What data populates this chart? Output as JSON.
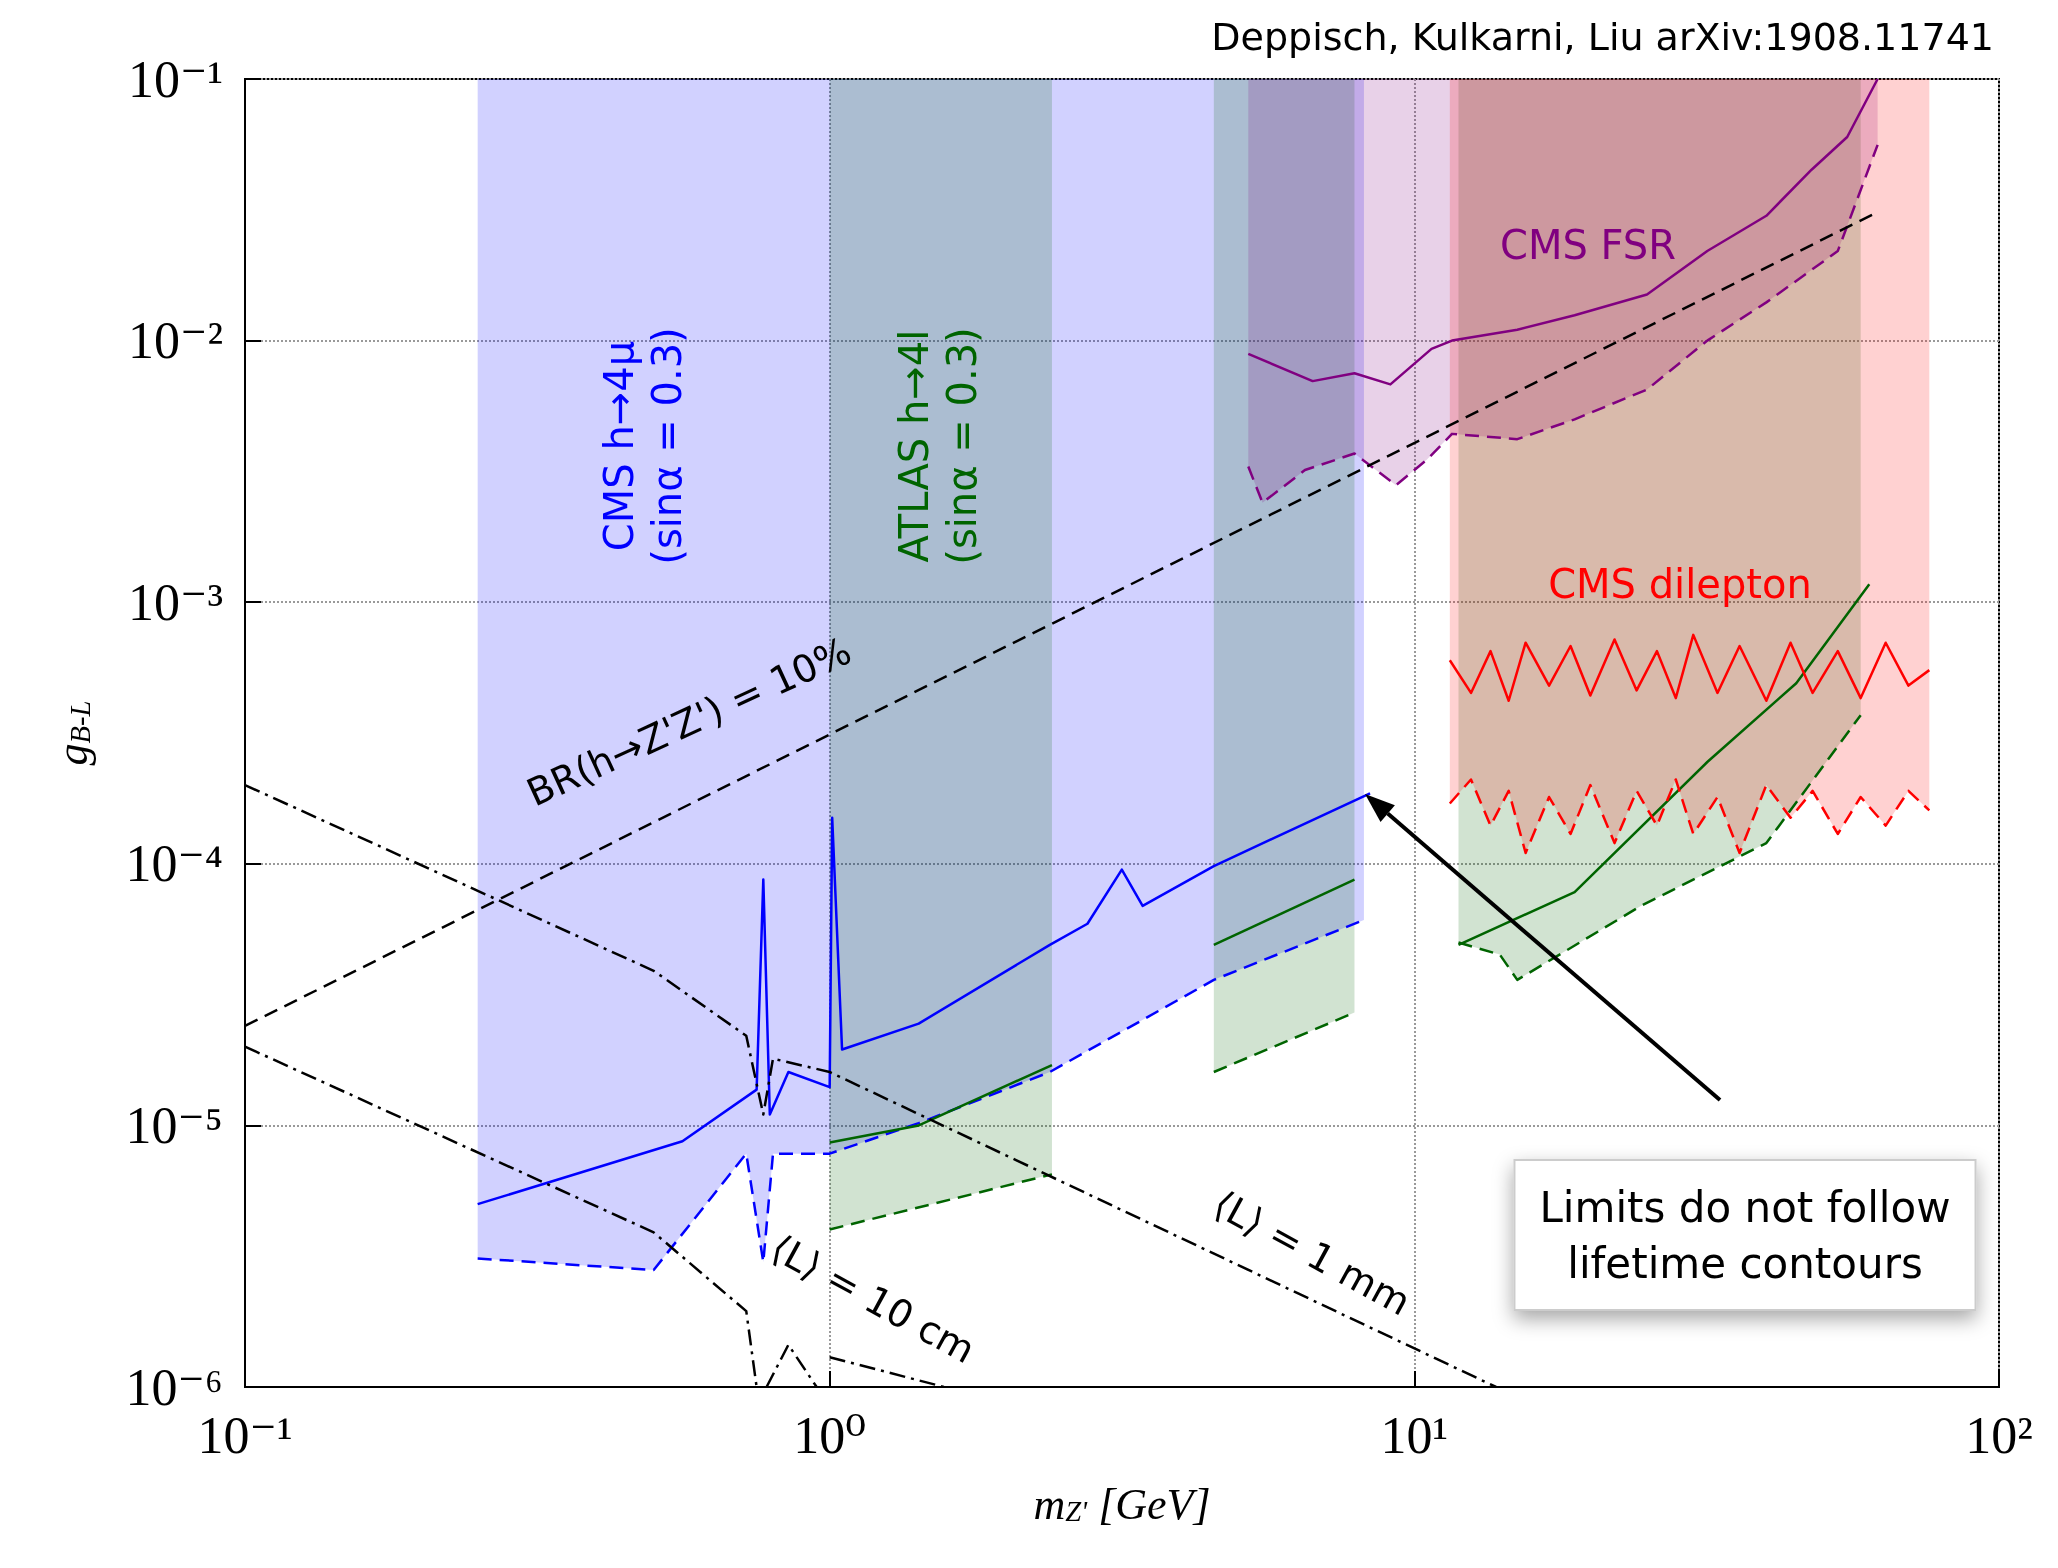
{
  "chart_data": {
    "type": "line",
    "title": "Deppisch, Kulkarni, Liu arXiv:1908.11741",
    "xlabel": "m$_{Z'}$ [GeV]",
    "ylabel": "g$_{B-L}$",
    "log": "xy",
    "grid": true,
    "marker": "none",
    "xlim": [
      0.1,
      100
    ],
    "ylim": [
      1e-06,
      0.1
    ],
    "xticks": [
      {
        "value": 0.1,
        "label": "10⁻¹"
      },
      {
        "value": 1,
        "label": "10⁰"
      },
      {
        "value": 10,
        "label": "10¹"
      },
      {
        "value": 100,
        "label": "10²"
      }
    ],
    "yticks": [
      {
        "value": 1e-06,
        "label": "10⁻⁶"
      },
      {
        "value": 1e-05,
        "label": "10⁻⁵"
      },
      {
        "value": 0.0001,
        "label": "10⁻⁴"
      },
      {
        "value": 0.001,
        "label": "10⁻³"
      },
      {
        "value": 0.01,
        "label": "10⁻²"
      },
      {
        "value": 0.1,
        "label": "10⁻¹"
      }
    ],
    "series": [
      {
        "color": "#0000ff",
        "line_style": "dashed",
        "x": [
          0.25,
          0.5,
          0.72,
          0.77,
          0.8,
          1.0,
          1.42,
          2.38,
          4.54,
          8.2
        ],
        "values": [
          3.1e-06,
          2.8e-06,
          7.8e-06,
          3e-06,
          7.8e-06,
          7.8e-06,
          1.02e-05,
          1.6e-05,
          3.6e-05,
          6.1e-05
        ],
        "lower": [
          3.1e-06,
          2.8e-06,
          7.8e-06,
          3e-06,
          7.8e-06,
          7.8e-06,
          1.02e-05,
          1.6e-05,
          3.6e-05,
          6.1e-05
        ],
        "upper": [
          0.1,
          0.1,
          0.1,
          0.1,
          0.1,
          0.1,
          0.1,
          0.1,
          0.1,
          0.1
        ]
      },
      {
        "color": "#0000ff",
        "line_style": "solid",
        "x": [
          0.25,
          0.56,
          0.75,
          0.77,
          0.79,
          0.85,
          1.0,
          1.01,
          1.05,
          1.42,
          2.38,
          2.76,
          3.16,
          3.43,
          4.54,
          8.4
        ],
        "values": [
          5e-06,
          8.7e-06,
          1.37e-05,
          8.7e-05,
          1.1e-05,
          1.6e-05,
          1.4e-05,
          0.00015,
          1.95e-05,
          2.45e-05,
          4.9e-05,
          5.9e-05,
          9.5e-05,
          6.9e-05,
          9.8e-05,
          0.000186
        ]
      },
      {
        "color": "#006400",
        "line_style": "dashed",
        "x": [
          1.0,
          2.4
        ],
        "values": [
          4e-06,
          6.5e-06
        ],
        "lower": [
          4e-06,
          6.5e-06
        ],
        "upper": [
          0.1,
          0.1
        ]
      },
      {
        "color": "#006400",
        "line_style": "dashed",
        "x": [
          4.54,
          7.9
        ],
        "values": [
          1.6e-05,
          2.7e-05
        ],
        "lower": [
          1.6e-05,
          2.7e-05
        ],
        "upper": [
          0.1,
          0.1
        ]
      },
      {
        "color": "#006400",
        "line_style": "dashed",
        "x": [
          11.9,
          14,
          15,
          24.4,
          40,
          58
        ],
        "values": [
          5e-05,
          4.5e-05,
          3.6e-05,
          6.9e-05,
          0.00012,
          0.00037
        ],
        "lower": [
          5e-05,
          4.5e-05,
          3.6e-05,
          6.9e-05,
          0.00012,
          0.00037
        ],
        "upper": [
          0.1,
          0.1,
          0.1,
          0.1,
          0.1,
          0.1
        ]
      },
      {
        "color": "#006400",
        "line_style": "solid",
        "x": [
          1.0,
          1.42,
          2.4
        ],
        "values": [
          8.6e-06,
          1e-05,
          1.7e-05
        ]
      },
      {
        "color": "#006400",
        "line_style": "solid",
        "x": [
          4.54,
          7.9
        ],
        "values": [
          4.9e-05,
          8.7e-05
        ]
      },
      {
        "color": "#006400",
        "line_style": "solid",
        "x": [
          11.9,
          18.8,
          31.7,
          45,
          60
        ],
        "values": [
          4.9e-05,
          7.8e-05,
          0.000245,
          0.00049,
          0.00117
        ]
      },
      {
        "color": "#800080",
        "line_style": "dashed",
        "x": [
          5.2,
          5.5,
          6.5,
          7.9,
          9.3,
          10.5,
          11.6,
          15,
          18.8,
          25,
          31.7,
          40,
          53,
          62
        ],
        "values": [
          0.0033,
          0.0024,
          0.0032,
          0.0037,
          0.0028,
          0.0035,
          0.0044,
          0.0042,
          0.005,
          0.0065,
          0.01,
          0.014,
          0.022,
          0.056
        ],
        "lower": [
          0.0033,
          0.0024,
          0.0032,
          0.0037,
          0.0028,
          0.0035,
          0.0044,
          0.0042,
          0.005,
          0.0065,
          0.01,
          0.014,
          0.022,
          0.056
        ],
        "upper": [
          0.1,
          0.1,
          0.1,
          0.1,
          0.1,
          0.1,
          0.1,
          0.1,
          0.1,
          0.1,
          0.1,
          0.1,
          0.1,
          0.1
        ]
      },
      {
        "color": "#800080",
        "line_style": "solid",
        "x": [
          5.2,
          6.7,
          7.9,
          9.1,
          10.7,
          11.6,
          15,
          18.8,
          25,
          31.7,
          40,
          47.8,
          55,
          62
        ],
        "values": [
          0.0089,
          0.007,
          0.0075,
          0.0068,
          0.0093,
          0.01,
          0.011,
          0.0125,
          0.015,
          0.022,
          0.03,
          0.045,
          0.06,
          0.1
        ]
      },
      {
        "color": "#ff0000",
        "line_style": "dashed",
        "x": [
          11.5,
          12.5,
          13.5,
          14.5,
          15.5,
          17,
          18.5,
          20,
          22,
          24,
          26,
          28,
          30,
          33,
          36,
          40,
          44,
          48,
          53,
          58,
          64,
          70,
          76
        ],
        "values": [
          0.00017,
          0.00021,
          0.00014,
          0.00019,
          0.00011,
          0.00018,
          0.00013,
          0.0002,
          0.00012,
          0.00019,
          0.00014,
          0.00021,
          0.00013,
          0.00018,
          0.00011,
          0.0002,
          0.00015,
          0.00019,
          0.00013,
          0.00018,
          0.00014,
          0.00019,
          0.00016
        ],
        "lower": [
          0.00017,
          0.00021,
          0.00014,
          0.00019,
          0.00011,
          0.00018,
          0.00013,
          0.0002,
          0.00012,
          0.00019,
          0.00014,
          0.00021,
          0.00013,
          0.00018,
          0.00011,
          0.0002,
          0.00015,
          0.00019,
          0.00013,
          0.00018,
          0.00014,
          0.00019,
          0.00016
        ],
        "upper": [
          0.1,
          0.1,
          0.1,
          0.1,
          0.1,
          0.1,
          0.1,
          0.1,
          0.1,
          0.1,
          0.1,
          0.1,
          0.1,
          0.1,
          0.1,
          0.1,
          0.1,
          0.1,
          0.1,
          0.1,
          0.1,
          0.1,
          0.1
        ]
      },
      {
        "color": "#ff0000",
        "line_style": "solid",
        "x": [
          11.5,
          12.5,
          13.5,
          14.5,
          15.5,
          17,
          18.5,
          20,
          22,
          24,
          26,
          28,
          30,
          33,
          36,
          40,
          44,
          48,
          53,
          58,
          64,
          70,
          76
        ],
        "values": [
          0.0006,
          0.00045,
          0.00065,
          0.00042,
          0.0007,
          0.00048,
          0.00068,
          0.00044,
          0.00072,
          0.00046,
          0.00065,
          0.00043,
          0.00075,
          0.00045,
          0.00068,
          0.00042,
          0.0007,
          0.00045,
          0.00065,
          0.00043,
          0.0007,
          0.00048,
          0.00055
        ]
      },
      {
        "color": "#000000",
        "line_style": "dashed",
        "x": [
          0.1,
          62
        ],
        "values": [
          2.4e-05,
          0.031
        ]
      },
      {
        "color": "#000000",
        "line_style": "dashdot",
        "x": [
          0.1,
          0.5,
          0.72,
          0.77,
          0.8,
          1.0,
          13.8
        ],
        "values": [
          0.0002,
          3.9e-05,
          2.2e-05,
          1.1e-05,
          1.8e-05,
          1.6e-05,
          1e-06
        ]
      },
      {
        "color": "#000000",
        "line_style": "dashdot",
        "x": [
          0.1,
          0.5,
          0.72,
          0.75,
          0.76,
          0.78,
          0.85,
          0.95,
          0.96,
          1.0,
          1.57
        ],
        "values": [
          2e-05,
          3.9e-06,
          1.95e-06,
          1e-06,
          null,
          1e-06,
          1.45e-06,
          1e-06,
          null,
          1.3e-06,
          1e-06
        ]
      }
    ],
    "annotations": [
      "CMS h→4μ\n(sinα = 0.3)",
      "ATLAS h→4l\n(sinα = 0.3)",
      "CMS FSR",
      "CMS dilepton",
      "BR(h→Z'Z') = 10%",
      "⟨L⟩ = 1 mm",
      "⟨L⟩ = 10 cm",
      "Limits do not follow\nlifetime contours"
    ]
  }
}
